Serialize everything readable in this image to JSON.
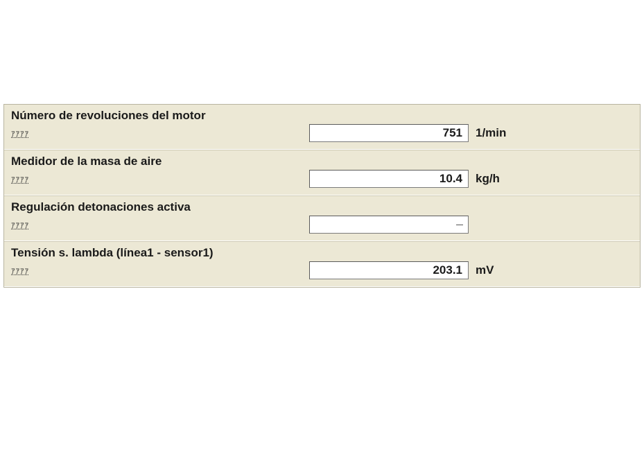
{
  "colors": {
    "panel_bg": "#ece8d5",
    "border": "#b8b4a0",
    "input_bg": "#ffffff",
    "text": "#1a1a1a"
  },
  "rows": [
    {
      "label": "Número de revoluciones del motor",
      "sub": "ｱｱｱｱ",
      "value": "751",
      "unit": "1/min"
    },
    {
      "label": "Medidor de la masa de aire",
      "sub": "ｱｱｱｱ",
      "value": "10.4",
      "unit": "kg/h"
    },
    {
      "label": "Regulación detonaciones activa",
      "sub": "ｱｱｱｱ",
      "value": "—",
      "unit": ""
    },
    {
      "label": "Tensión s. lambda (línea1 - sensor1)",
      "sub": "ｱｱｱｱ",
      "value": "203.1",
      "unit": "mV"
    }
  ]
}
